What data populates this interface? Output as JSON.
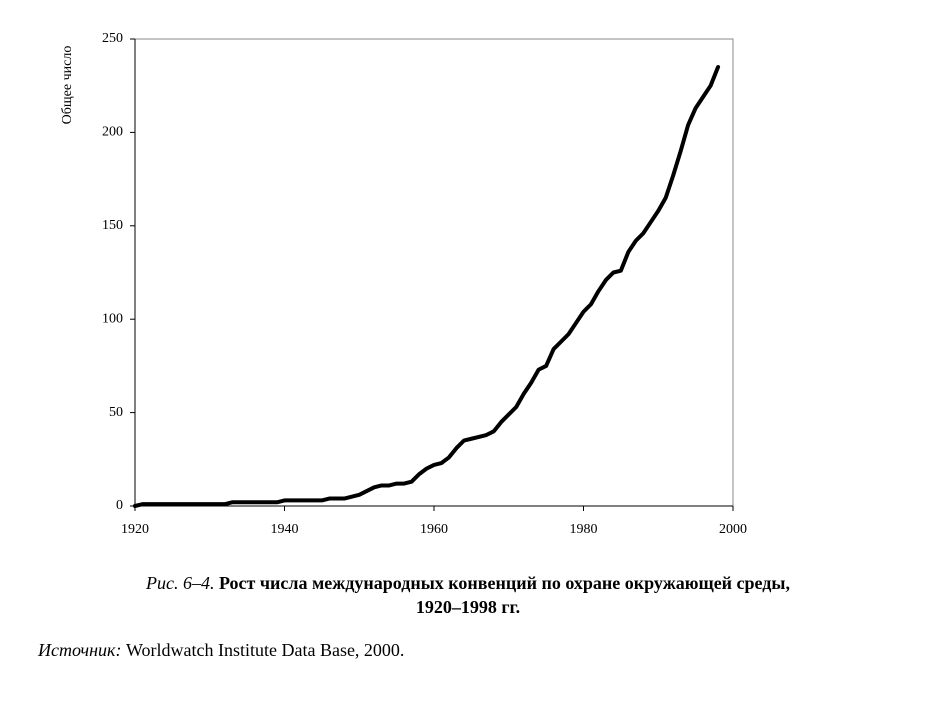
{
  "chart_data": {
    "type": "line",
    "y_label": "Общее число",
    "x": [
      1920,
      1921,
      1922,
      1923,
      1924,
      1925,
      1926,
      1927,
      1928,
      1929,
      1930,
      1931,
      1932,
      1933,
      1934,
      1935,
      1936,
      1937,
      1938,
      1939,
      1940,
      1941,
      1942,
      1943,
      1944,
      1945,
      1946,
      1947,
      1948,
      1949,
      1950,
      1951,
      1952,
      1953,
      1954,
      1955,
      1956,
      1957,
      1958,
      1959,
      1960,
      1961,
      1962,
      1963,
      1964,
      1965,
      1966,
      1967,
      1968,
      1969,
      1970,
      1971,
      1972,
      1973,
      1974,
      1975,
      1976,
      1977,
      1978,
      1979,
      1980,
      1981,
      1982,
      1983,
      1984,
      1985,
      1986,
      1987,
      1988,
      1989,
      1990,
      1991,
      1992,
      1993,
      1994,
      1995,
      1996,
      1997,
      1998
    ],
    "values": [
      0,
      1,
      1,
      1,
      1,
      1,
      1,
      1,
      1,
      1,
      1,
      1,
      1,
      2,
      2,
      2,
      2,
      2,
      2,
      2,
      3,
      3,
      3,
      3,
      3,
      3,
      4,
      4,
      4,
      5,
      6,
      8,
      10,
      11,
      11,
      12,
      12,
      13,
      17,
      20,
      22,
      23,
      26,
      31,
      35,
      36,
      37,
      38,
      40,
      45,
      49,
      53,
      60,
      66,
      73,
      75,
      84,
      88,
      92,
      98,
      104,
      108,
      115,
      121,
      125,
      126,
      136,
      142,
      146,
      152,
      158,
      165,
      177,
      190,
      204,
      213,
      219,
      225,
      235
    ],
    "color": "#000000",
    "xlim": [
      1920,
      2000
    ],
    "xticks": [
      1920,
      1940,
      1960,
      1980,
      2000
    ],
    "ylim": [
      0,
      250
    ],
    "yticks": [
      0,
      50,
      100,
      150,
      200,
      250
    ],
    "caption_label": "Рис. 6–4.",
    "caption_line1": "Рост числа международных конвенций по охране окружающей среды,",
    "caption_line2": "1920–1998 гг.",
    "source_label": "Источник:",
    "source_text": "Worldwatch Institute Data Base, 2000."
  }
}
